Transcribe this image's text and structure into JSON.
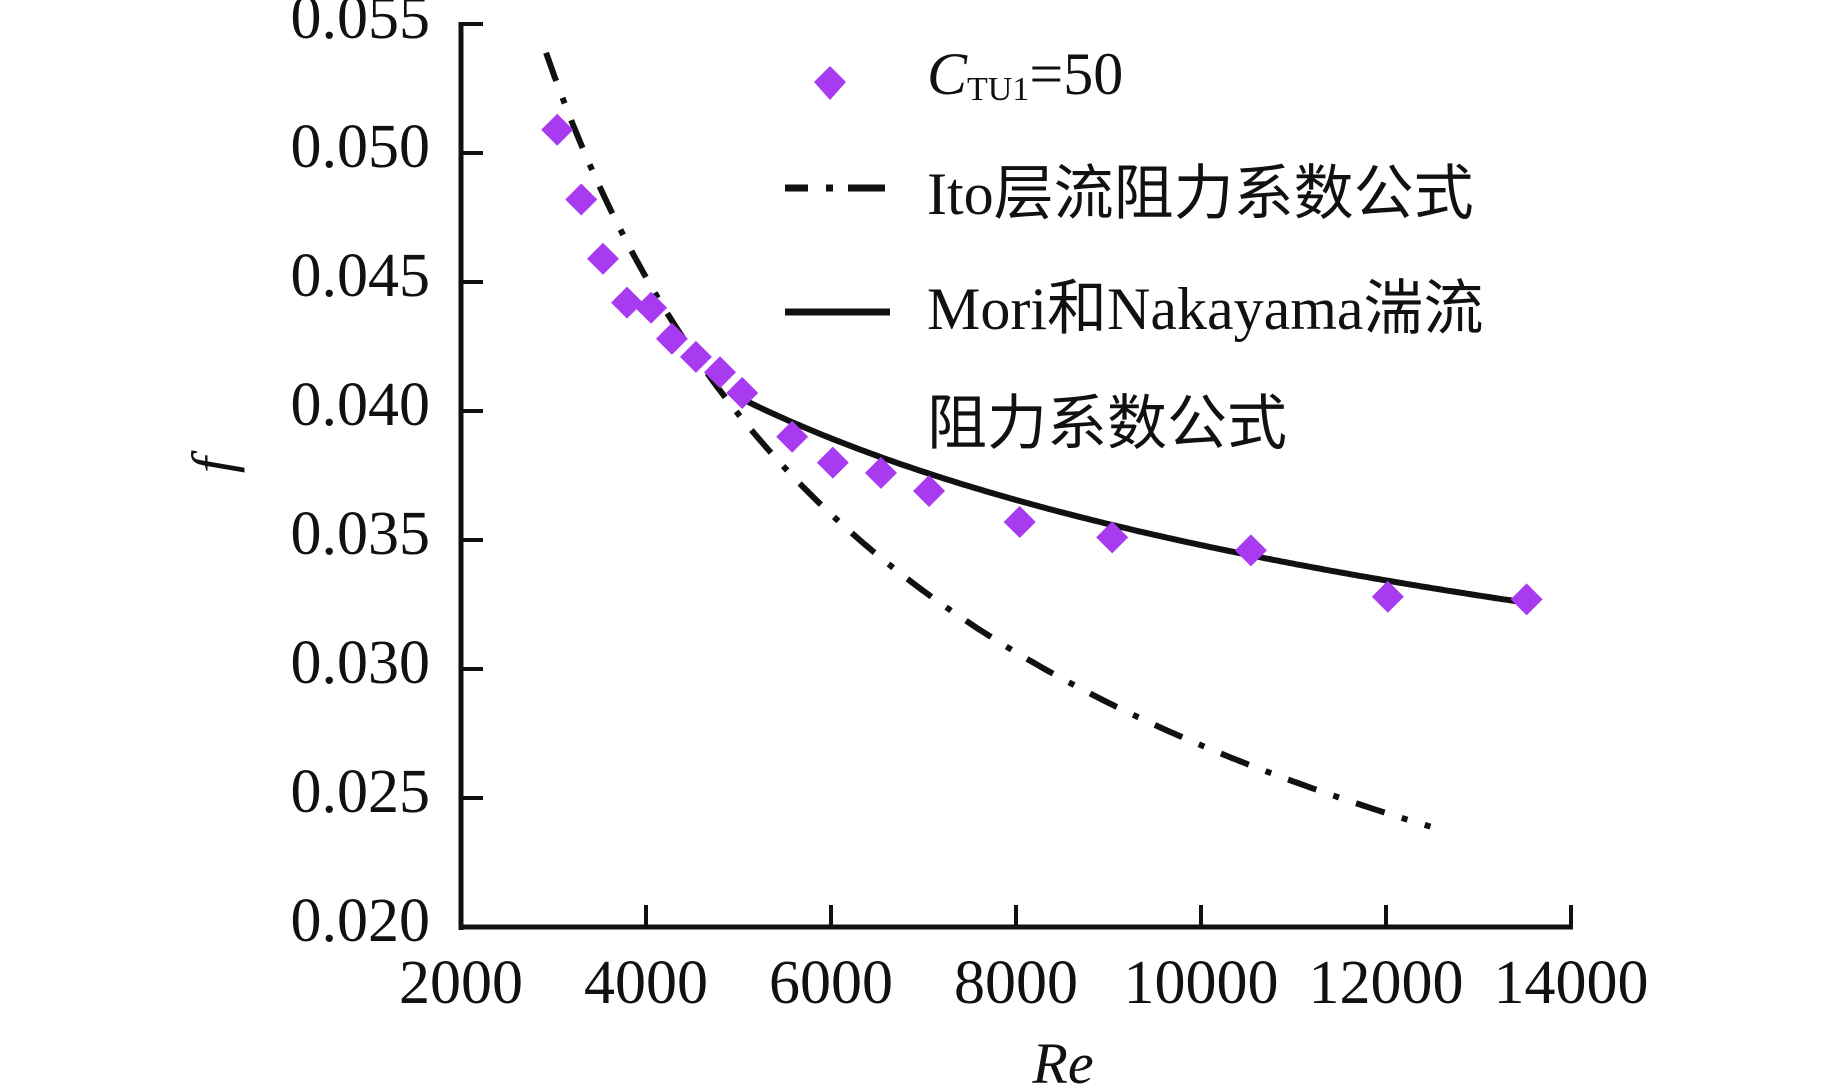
{
  "chart_data": {
    "type": "scatter",
    "title": "",
    "xlabel": "Re",
    "ylabel": "f",
    "xlim": [
      2000,
      14000
    ],
    "ylim": [
      0.02,
      0.055
    ],
    "x_ticks": [
      2000,
      4000,
      6000,
      8000,
      10000,
      12000,
      14000
    ],
    "x_tick_labels": [
      "2000",
      "4000",
      "6000",
      "8000",
      "10000",
      "12000",
      "14000"
    ],
    "y_ticks": [
      0.02,
      0.025,
      0.03,
      0.035,
      0.04,
      0.045,
      0.05,
      0.055
    ],
    "y_tick_labels": [
      "0.020",
      "0.025",
      "0.030",
      "0.035",
      "0.040",
      "0.045",
      "0.050",
      "0.055"
    ],
    "grid": false,
    "legend_position": "top-right",
    "series": [
      {
        "name": "C_TU1=50",
        "legend_main": "C",
        "legend_sub": "TU1",
        "legend_rest": "=50",
        "kind": "markers",
        "marker": "diamond",
        "color": "#a83bf0",
        "x": [
          3040,
          3300,
          3535,
          3795,
          4055,
          4280,
          4540,
          4800,
          5040,
          5580,
          6020,
          6540,
          7060,
          8040,
          9040,
          10540,
          12020,
          13520
        ],
        "y": [
          0.0509,
          0.0482,
          0.0459,
          0.0442,
          0.044,
          0.0428,
          0.0421,
          0.0415,
          0.0407,
          0.039,
          0.038,
          0.0376,
          0.0369,
          0.0357,
          0.0351,
          0.0346,
          0.0328,
          0.0327
        ]
      },
      {
        "name": "Ito层流阻力系数公式",
        "legend_lines": [
          "Ito层流阻力系数公式"
        ],
        "kind": "line",
        "line_style": "dash-dot",
        "color": "#111111",
        "formula": {
          "a": 4.7,
          "b": -0.56
        },
        "x_range": [
          2920,
          12480
        ],
        "x": [
          2920,
          3500,
          4000,
          5000,
          6000,
          7000,
          8000,
          9000,
          10000,
          11000,
          12000,
          12480
        ],
        "y": [
          0.0539,
          0.0486,
          0.045,
          0.0396,
          0.0359,
          0.0328,
          0.0306,
          0.0286,
          0.027,
          0.0256,
          0.0244,
          0.0239
        ]
      },
      {
        "name": "Mori和Nakayama湍流阻力系数公式",
        "legend_lines": [
          "Mori和Nakayama湍流",
          "阻力系数公式"
        ],
        "kind": "line",
        "line_style": "solid",
        "color": "#111111",
        "formula": {
          "a": 0.264,
          "b": -0.22
        },
        "x_range": [
          5100,
          13520
        ],
        "x": [
          5100,
          6000,
          7000,
          8000,
          9000,
          10000,
          11000,
          12000,
          13000,
          13520
        ],
        "y": [
          0.0404,
          0.039,
          0.0377,
          0.0366,
          0.0357,
          0.0349,
          0.0342,
          0.0336,
          0.033,
          0.0326
        ]
      }
    ]
  }
}
